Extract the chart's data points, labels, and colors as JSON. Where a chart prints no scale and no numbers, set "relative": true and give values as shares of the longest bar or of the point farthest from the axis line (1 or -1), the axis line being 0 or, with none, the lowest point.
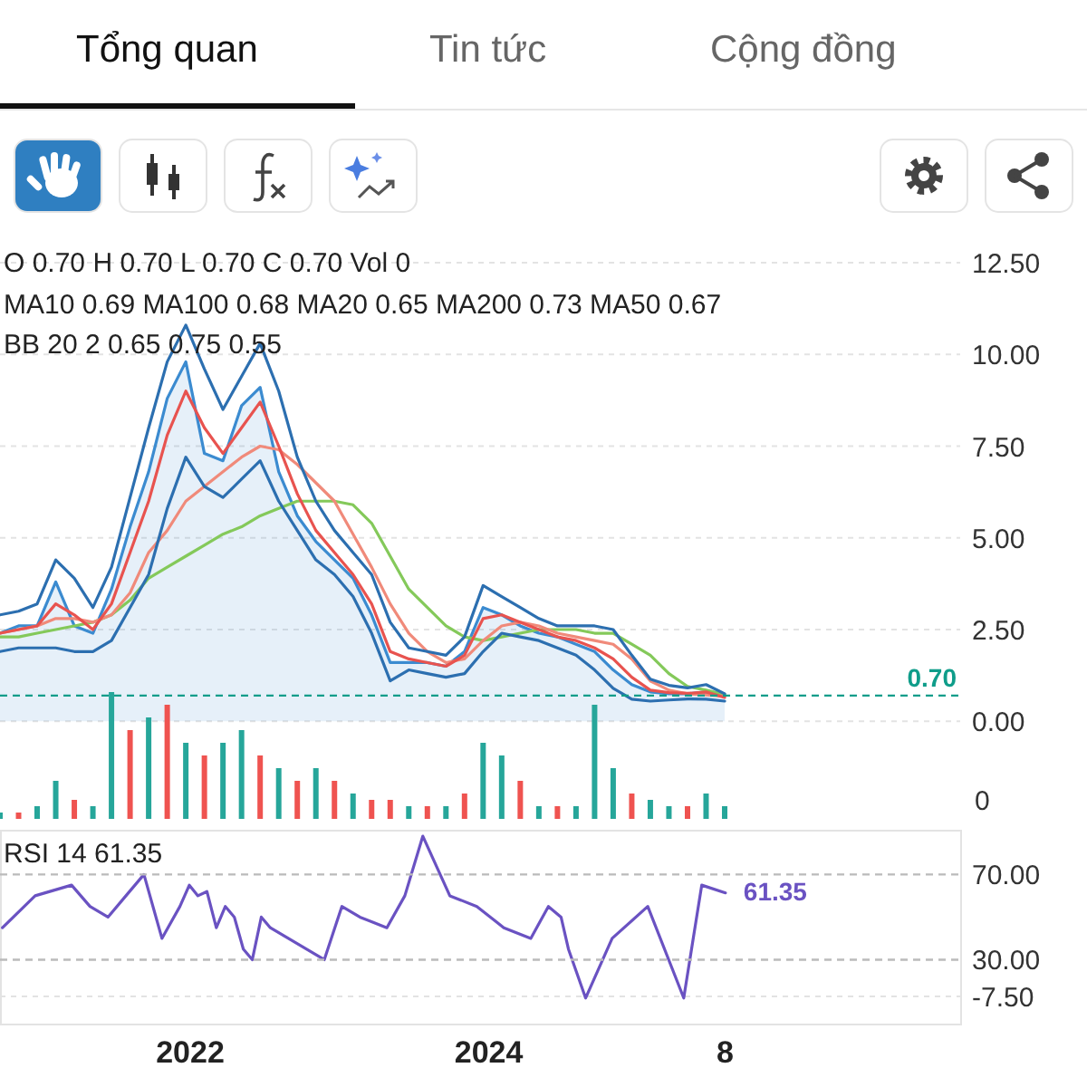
{
  "chart_data": [
    {
      "type": "other",
      "annotations": [
        "Tổng quan",
        "Tin tức",
        "Cộng đồng"
      ]
    },
    {
      "type": "line",
      "annotations": [
        "O 0.70 H 0.70 L 0.70 C 0.70 Vol 0",
        "MA10 0.69 MA100 0.68 MA20 0.65 MA200 0.73 MA50 0.67",
        "BB 20 2 0.65 0.75 0.55"
      ],
      "categories": [
        null,
        null,
        null,
        null,
        null,
        null,
        null,
        null,
        null,
        null,
        null,
        null,
        null,
        null,
        null,
        null,
        null,
        null,
        null,
        null,
        null,
        null,
        null,
        null,
        null,
        null,
        null,
        null,
        null,
        null,
        null,
        null,
        null,
        null,
        null,
        null,
        null,
        null,
        null,
        null
      ],
      "ylim": [
        -7.5,
        12.5
      ],
      "yticks": [
        {
          "value": -7.5,
          "label": "-7.50"
        },
        {
          "value": 0,
          "label": "0.00"
        },
        {
          "value": 2.5,
          "label": "2.50"
        },
        {
          "value": 5,
          "label": "5.00"
        },
        {
          "value": 7.5,
          "label": "7.50"
        },
        {
          "value": 10,
          "label": "10.00"
        },
        {
          "value": 12.5,
          "label": "12.50"
        }
      ],
      "tick_labels": "y",
      "grid": "y",
      "ref_lines": [
        {
          "axis": "y",
          "value": 0.7,
          "label": "0.70",
          "color": "#0f9d8a",
          "line_style": "dashed"
        }
      ],
      "series": [
        {
          "type": "area",
          "color": "#3b8bd0",
          "values": [
            2.4,
            2.6,
            2.6,
            3.8,
            2.6,
            2.4,
            3.6,
            5.3,
            6.8,
            8.8,
            9.8,
            7.3,
            7.1,
            8.6,
            9.1,
            6.8,
            5.6,
            4.9,
            4.4,
            3.9,
            2.9,
            1.6,
            1.6,
            1.6,
            1.5,
            1.9,
            3.1,
            2.9,
            2.6,
            2.4,
            2.3,
            2.1,
            1.9,
            1.4,
            1.0,
            0.8,
            0.75,
            0.75,
            0.8,
            0.7
          ]
        },
        {
          "color": "#84c95a",
          "values": [
            2.3,
            2.3,
            2.4,
            2.5,
            2.6,
            2.7,
            2.9,
            3.3,
            3.9,
            4.2,
            4.5,
            4.8,
            5.1,
            5.3,
            5.6,
            5.8,
            6.0,
            6.0,
            6.0,
            5.9,
            5.4,
            4.5,
            3.6,
            3.1,
            2.6,
            2.3,
            2.2,
            2.3,
            2.4,
            2.5,
            2.5,
            2.5,
            2.4,
            2.4,
            2.1,
            1.8,
            1.3,
            0.95,
            0.85,
            0.73
          ]
        },
        {
          "color": "#f08a7a",
          "values": [
            2.4,
            2.5,
            2.6,
            2.8,
            2.8,
            2.7,
            2.9,
            3.5,
            4.6,
            5.2,
            6.0,
            6.4,
            6.8,
            7.2,
            7.5,
            7.4,
            7.0,
            6.5,
            6.0,
            5.1,
            4.2,
            3.2,
            2.4,
            1.9,
            1.6,
            1.7,
            2.2,
            2.6,
            2.7,
            2.6,
            2.4,
            2.3,
            2.2,
            2.1,
            1.7,
            1.1,
            0.85,
            0.75,
            0.72,
            0.68
          ]
        },
        {
          "color": "#2c6fb0",
          "values": [
            2.9,
            3.0,
            3.2,
            4.4,
            3.9,
            3.1,
            4.2,
            6.1,
            8.0,
            9.8,
            10.8,
            9.6,
            8.5,
            9.4,
            10.3,
            9.0,
            7.2,
            6.0,
            5.2,
            4.6,
            4.0,
            2.7,
            2.0,
            1.9,
            1.8,
            2.3,
            3.7,
            3.4,
            3.1,
            2.8,
            2.6,
            2.6,
            2.6,
            2.5,
            1.8,
            1.15,
            0.98,
            0.91,
            1.0,
            0.75
          ]
        },
        {
          "color": "#2c6fb0",
          "values": [
            1.9,
            2.0,
            2.0,
            2.0,
            1.9,
            1.9,
            2.2,
            3.1,
            4.0,
            5.8,
            7.2,
            6.4,
            6.1,
            6.6,
            7.1,
            6.0,
            5.2,
            4.4,
            4.0,
            3.4,
            2.4,
            1.1,
            1.4,
            1.3,
            1.2,
            1.3,
            1.9,
            2.4,
            2.3,
            2.2,
            2.0,
            1.8,
            1.4,
            0.9,
            0.6,
            0.55,
            0.58,
            0.61,
            0.6,
            0.55
          ]
        },
        {
          "color": "#e8534f",
          "values": [
            2.4,
            2.5,
            2.6,
            3.2,
            2.9,
            2.5,
            3.2,
            4.6,
            6.0,
            7.8,
            9.0,
            8.0,
            7.3,
            8.0,
            8.7,
            7.5,
            6.2,
            5.2,
            4.6,
            4.0,
            3.2,
            1.9,
            1.7,
            1.6,
            1.5,
            1.8,
            2.8,
            2.9,
            2.7,
            2.5,
            2.3,
            2.2,
            2.0,
            1.7,
            1.2,
            0.85,
            0.78,
            0.76,
            0.8,
            0.65
          ]
        }
      ]
    },
    {
      "type": "bar",
      "relative": true,
      "tick_labels": false,
      "annotations": [
        "0"
      ],
      "categories": [
        null,
        null,
        null,
        null,
        null,
        null,
        null,
        null,
        null,
        null,
        null,
        null,
        null,
        null,
        null,
        null,
        null,
        null,
        null,
        null,
        null,
        null,
        null,
        null,
        null,
        null,
        null,
        null,
        null,
        null,
        null,
        null,
        null,
        null,
        null,
        null,
        null,
        null,
        null,
        null
      ],
      "values": [
        0.05,
        0.05,
        0.1,
        0.3,
        0.15,
        0.1,
        1.0,
        0.7,
        0.8,
        0.9,
        0.6,
        0.5,
        0.6,
        0.7,
        0.5,
        0.4,
        0.3,
        0.4,
        0.3,
        0.2,
        0.15,
        0.15,
        0.1,
        0.1,
        0.1,
        0.2,
        0.6,
        0.5,
        0.3,
        0.1,
        0.1,
        0.1,
        0.9,
        0.4,
        0.2,
        0.15,
        0.1,
        0.1,
        0.2,
        0.1
      ],
      "colors": [
        "#26a69a",
        "#ef5350",
        "#26a69a",
        "#26a69a",
        "#ef5350",
        "#26a69a",
        "#26a69a",
        "#ef5350",
        "#26a69a",
        "#ef5350",
        "#26a69a",
        "#ef5350",
        "#26a69a",
        "#26a69a",
        "#ef5350",
        "#26a69a",
        "#ef5350",
        "#26a69a",
        "#ef5350",
        "#26a69a",
        "#ef5350",
        "#ef5350",
        "#26a69a",
        "#ef5350",
        "#26a69a",
        "#ef5350",
        "#26a69a",
        "#26a69a",
        "#ef5350",
        "#26a69a",
        "#ef5350",
        "#26a69a",
        "#26a69a",
        "#26a69a",
        "#ef5350",
        "#26a69a",
        "#26a69a",
        "#ef5350",
        "#26a69a",
        "#26a69a"
      ]
    },
    {
      "type": "line",
      "annotations": [
        "RSI 14 61.35",
        {
          "text": "61.35",
          "x": "2025-08-04",
          "y": 61.35
        }
      ],
      "x": [
        "2020-10-01",
        "2020-12-20",
        "2021-03-19",
        "2021-05-03",
        "2021-06-16",
        "2021-07-30",
        "2021-09-12",
        "2021-10-26",
        "2021-12-09",
        "2022-01-01",
        "2022-01-22",
        "2022-02-13",
        "2022-03-08",
        "2022-03-30",
        "2022-04-21",
        "2022-05-13",
        "2022-06-04",
        "2022-06-26",
        "2022-07-18",
        "2022-08-31",
        "2022-10-14",
        "2022-11-27",
        "2023-01-09",
        "2023-02-22",
        "2023-04-29",
        "2023-06-12",
        "2023-07-26",
        "2023-09-30",
        "2023-12-05",
        "2024-02-09",
        "2024-04-15",
        "2024-05-28",
        "2024-06-28",
        "2024-07-16",
        "2024-08-27",
        "2024-10-31",
        "2025-01-26",
        "2025-04-24",
        "2025-06-07",
        "2025-08-04"
      ],
      "xlim": [
        "2020-09-25",
        "2027-03-01"
      ],
      "ylim": [
        0,
        91
      ],
      "xticks": [
        {
          "value": "2022-01-01",
          "label": "2022"
        },
        {
          "value": "2024-01-01",
          "label": "2024"
        },
        {
          "value": "2025-08-01",
          "label": "8"
        }
      ],
      "yticks": [
        {
          "value": 30,
          "label": "30.00"
        },
        {
          "value": 70,
          "label": "70.00"
        }
      ],
      "ref_lines": [
        {
          "axis": "y",
          "value": 70,
          "color": "#bbbbbb",
          "line_style": "dashed"
        },
        {
          "axis": "y",
          "value": 30,
          "color": "#bbbbbb",
          "line_style": "dashed"
        }
      ],
      "series": [
        {
          "color": "#6a52c2",
          "values": [
            45,
            60,
            65,
            55,
            50,
            60,
            70,
            40,
            55,
            65,
            60,
            62,
            45,
            55,
            50,
            35,
            30,
            50,
            45,
            40,
            35,
            30,
            55,
            50,
            45,
            60,
            88,
            60,
            55,
            45,
            40,
            55,
            50,
            35,
            12,
            40,
            55,
            12,
            65,
            61.35
          ]
        }
      ]
    }
  ]
}
